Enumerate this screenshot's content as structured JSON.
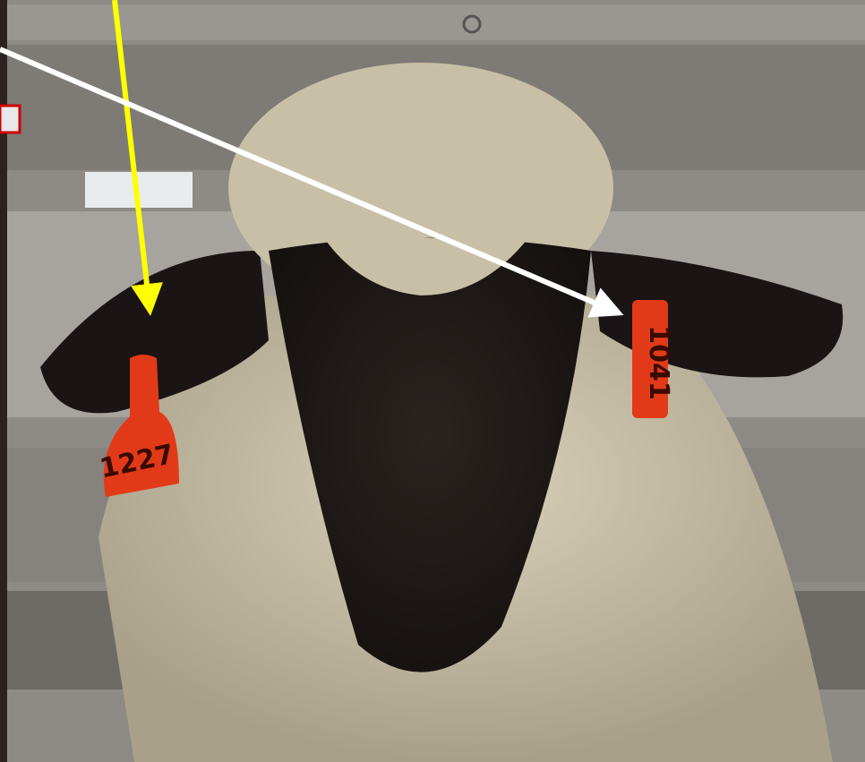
{
  "image": {
    "tags": [
      {
        "label": "1227"
      },
      {
        "label": "1041"
      }
    ]
  }
}
